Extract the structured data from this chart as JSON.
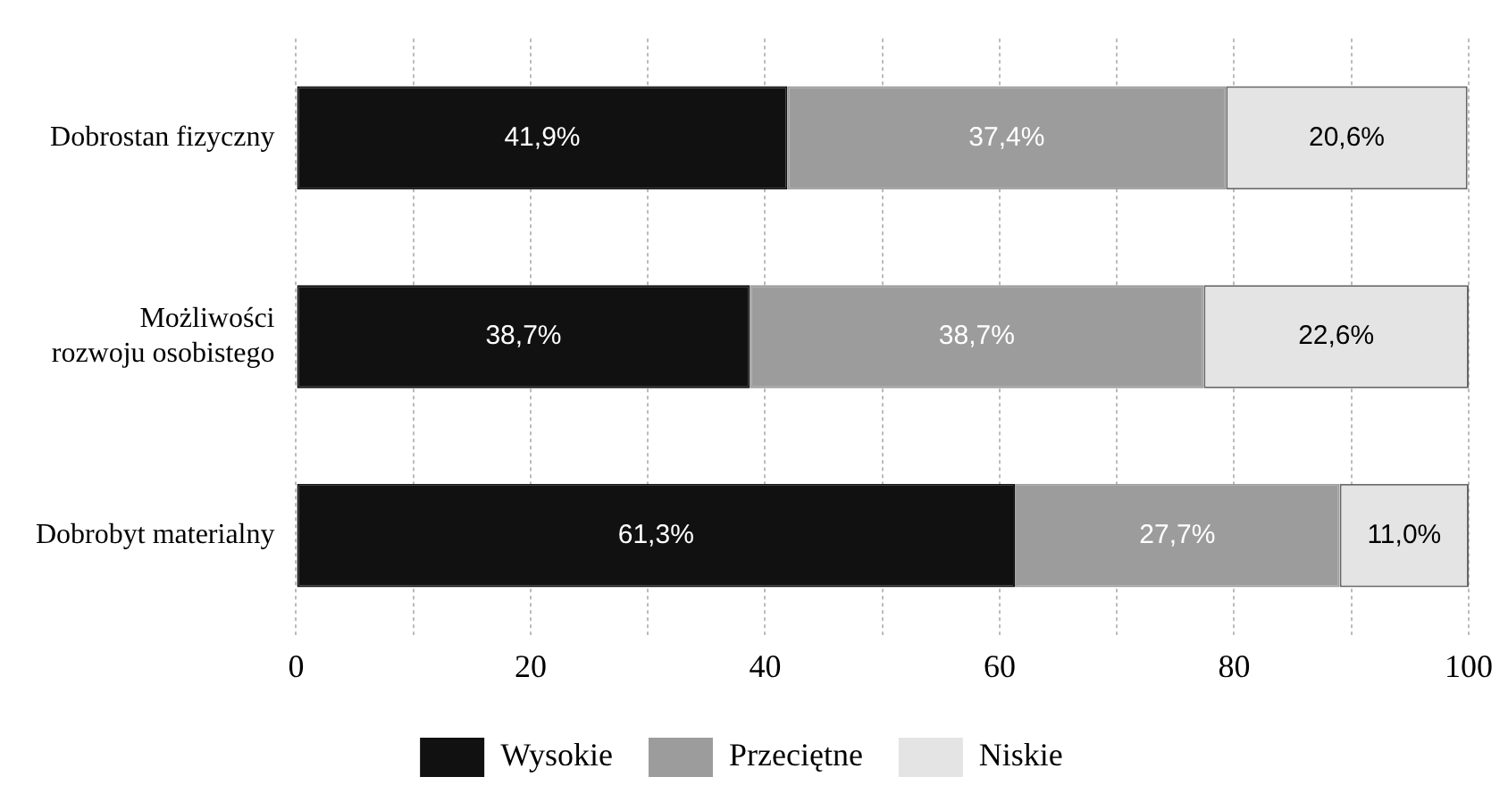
{
  "chart_data": {
    "type": "bar",
    "orientation": "horizontal",
    "stacked": true,
    "categories": [
      "Dobrostan fizyczny",
      "Możliwości rozwoju osobistego",
      "Dobrobyt materialny"
    ],
    "series": [
      {
        "name": "Wysokie",
        "color": "#111111",
        "values": [
          41.9,
          38.7,
          61.3
        ],
        "value_labels": [
          "41,9%",
          "38,7%",
          "61,3%"
        ]
      },
      {
        "name": "Przeciętne",
        "color": "#9c9c9c",
        "values": [
          37.4,
          38.7,
          27.7
        ],
        "value_labels": [
          "37,4%",
          "38,7%",
          "27,7%"
        ]
      },
      {
        "name": "Niskie",
        "color": "#e4e4e4",
        "values": [
          20.6,
          22.6,
          11.0
        ],
        "value_labels": [
          "20,6%",
          "22,6%",
          "11,0%"
        ]
      }
    ],
    "xlim": [
      0,
      100
    ],
    "xticks": [
      0,
      {
        "value": 10,
        "label": null
      },
      20,
      {
        "value": 30,
        "label": null
      },
      40,
      {
        "value": 50,
        "label": null
      },
      60,
      {
        "value": 70,
        "label": null
      },
      80,
      {
        "value": 90,
        "label": null
      },
      100
    ],
    "grid": "x",
    "legend": "bottom"
  }
}
